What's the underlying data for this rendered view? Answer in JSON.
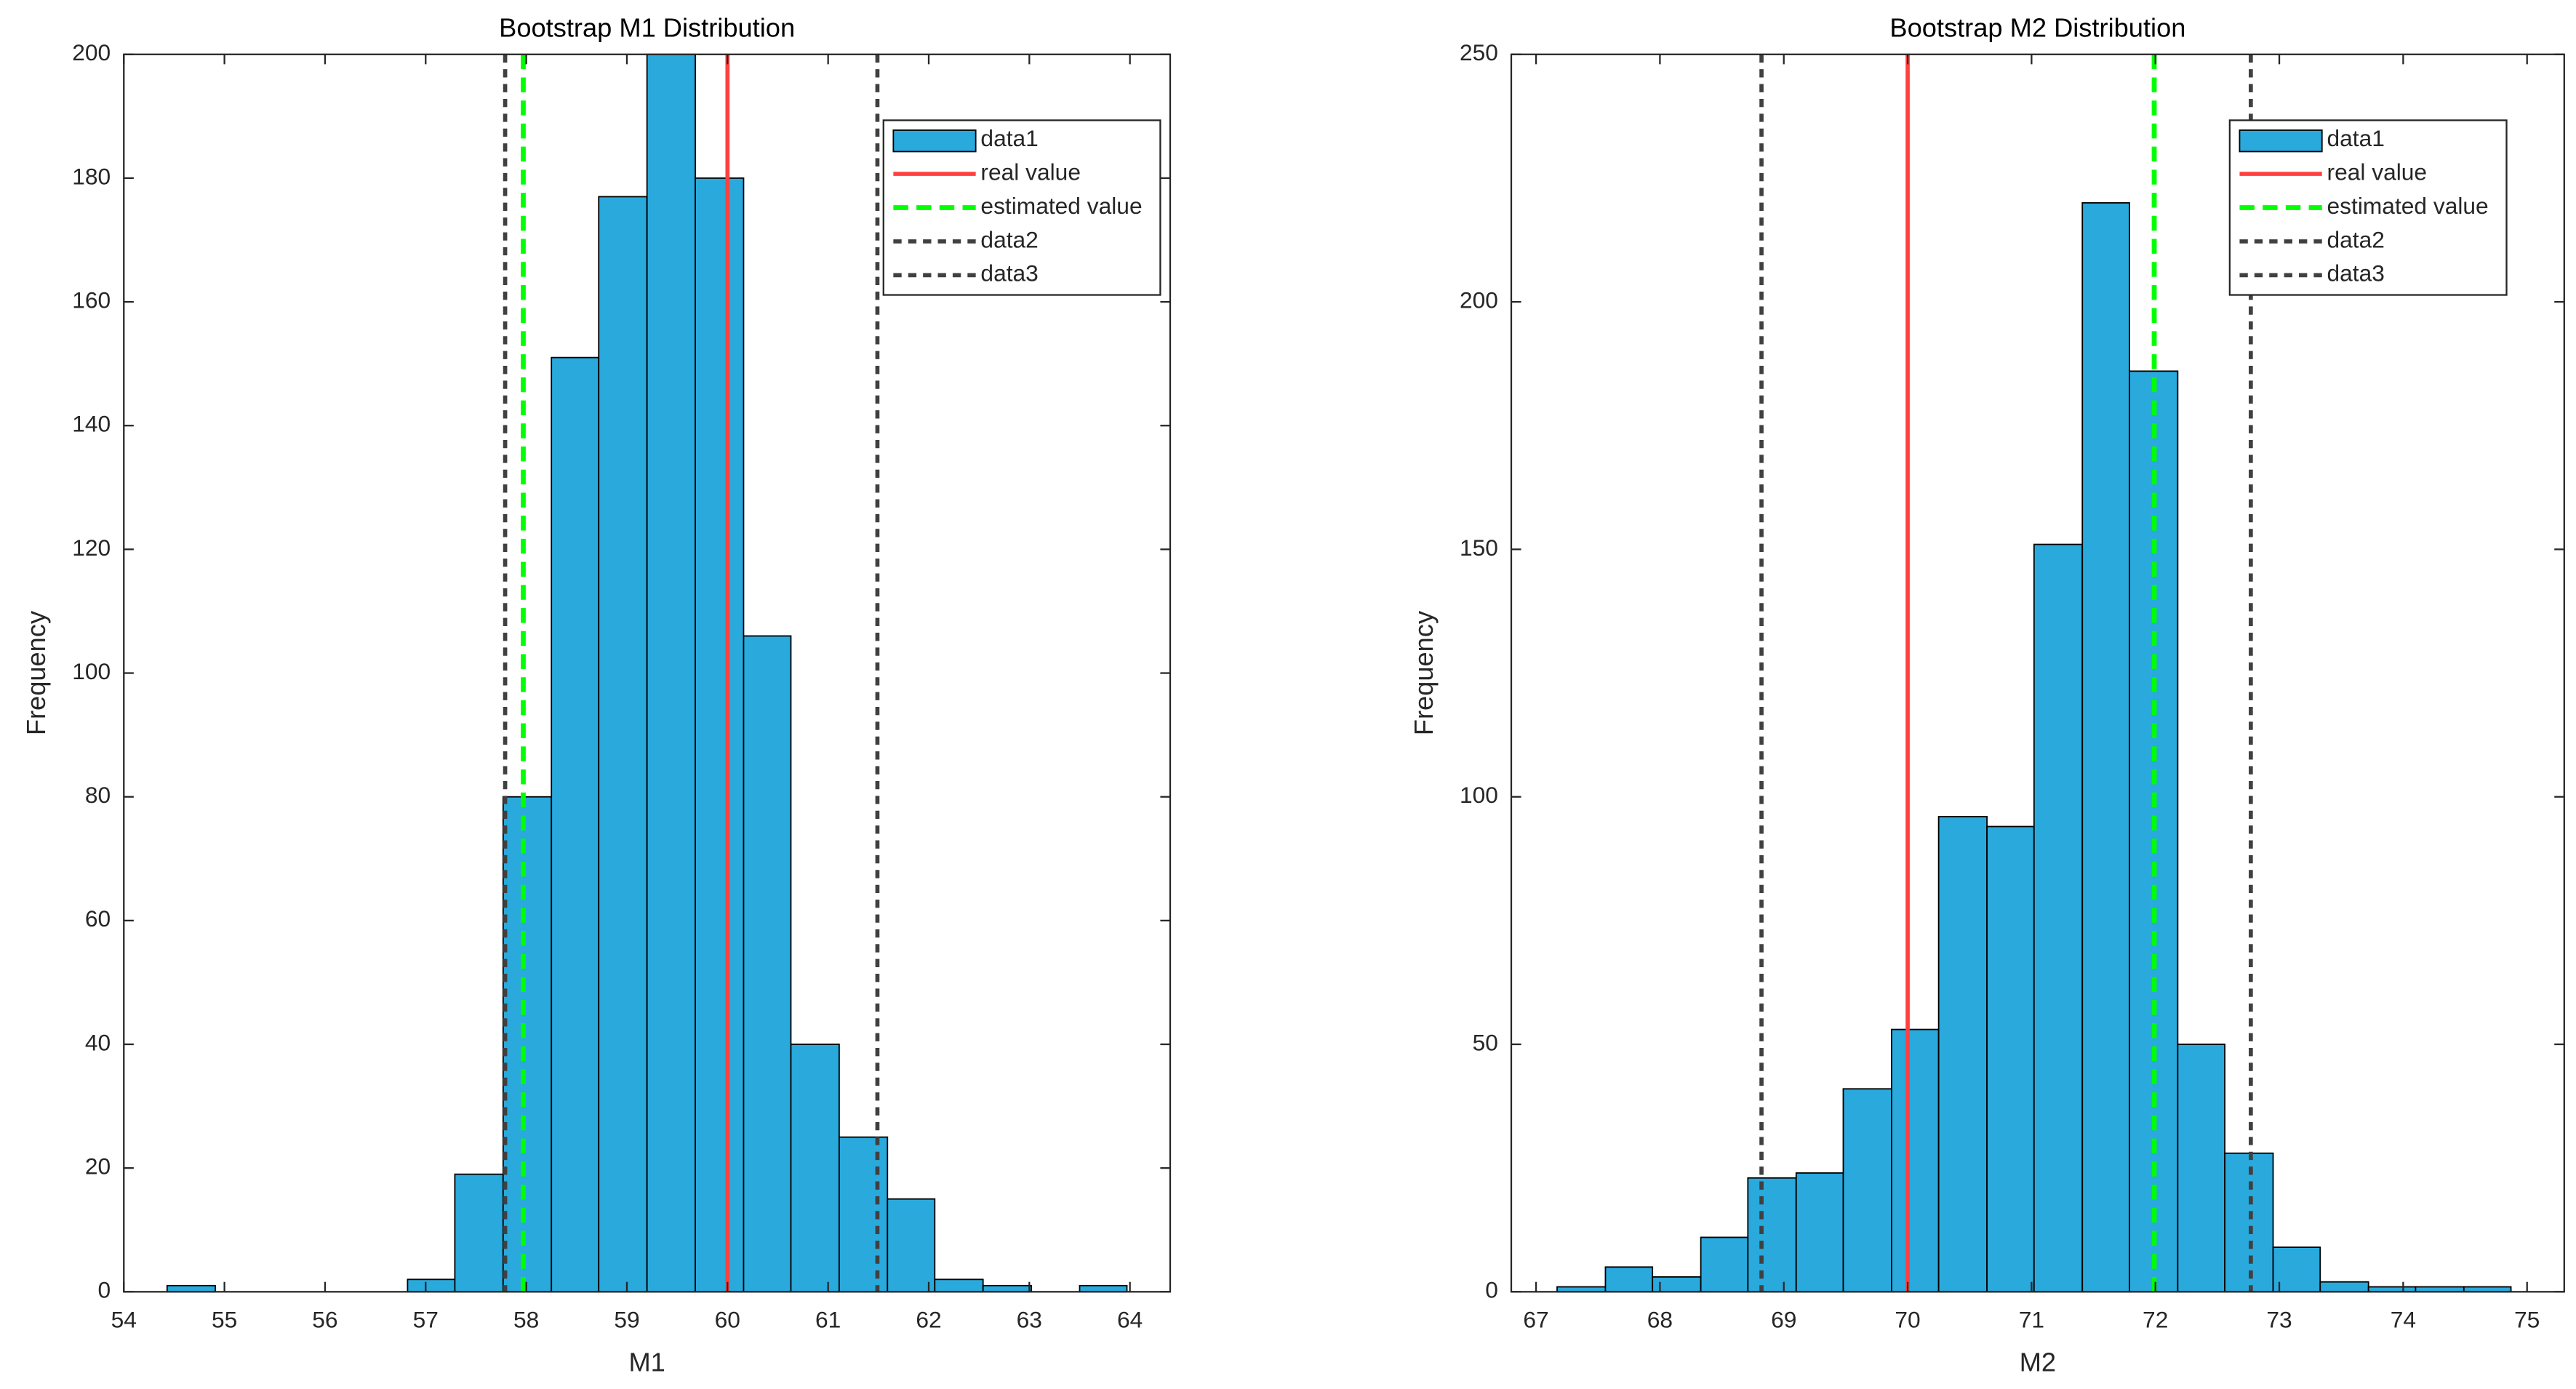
{
  "chart_data": [
    {
      "type": "histogram",
      "title": "Bootstrap M1 Distribution",
      "xlabel": "M1",
      "ylabel": "Frequency",
      "name": "data1",
      "color": "#2aa9dc",
      "bins": [
        54.43,
        54.91,
        55.38,
        55.86,
        56.34,
        56.82,
        57.29,
        57.77,
        58.25,
        58.72,
        59.2,
        59.68,
        60.16,
        60.63,
        61.11,
        61.59,
        62.06,
        62.54,
        63.02,
        63.5,
        63.97
      ],
      "counts": [
        1,
        0,
        0,
        0,
        0,
        2,
        19,
        80,
        151,
        177,
        200,
        180,
        106,
        40,
        25,
        15,
        2,
        1,
        0,
        1
      ],
      "xlim": [
        54,
        64.4
      ],
      "ylim": [
        0,
        200
      ],
      "xticks": [
        54,
        55,
        56,
        57,
        58,
        59,
        60,
        61,
        62,
        63,
        64
      ],
      "yticks": [
        0,
        20,
        40,
        60,
        80,
        100,
        120,
        140,
        160,
        180,
        200
      ],
      "vlines": [
        {
          "name": "real value",
          "x": 60,
          "color": "#ff4040",
          "style": "solid"
        },
        {
          "name": "estimated value",
          "x": 57.97,
          "color": "#00ff00",
          "style": "dashed"
        },
        {
          "name": "data2",
          "x": 57.79,
          "color": "#404040",
          "style": "dotted"
        },
        {
          "name": "data3",
          "x": 61.49,
          "color": "#404040",
          "style": "dotted"
        }
      ],
      "legend": "northeast"
    },
    {
      "type": "histogram",
      "title": "Bootstrap M2 Distribution",
      "xlabel": "M2",
      "ylabel": "Frequency",
      "name": "data1",
      "color": "#2aa9dc",
      "bins": [
        67.17,
        67.56,
        67.94,
        68.33,
        68.71,
        69.1,
        69.48,
        69.87,
        70.25,
        70.64,
        71.02,
        71.41,
        71.79,
        72.18,
        72.56,
        72.95,
        73.33,
        73.72,
        74.1,
        74.49,
        74.87
      ],
      "counts": [
        1,
        5,
        3,
        11,
        23,
        24,
        41,
        53,
        96,
        94,
        151,
        220,
        186,
        50,
        28,
        9,
        2,
        1,
        1,
        1
      ],
      "xlim": [
        66.8,
        75.3
      ],
      "ylim": [
        0,
        250
      ],
      "xticks": [
        67,
        68,
        69,
        70,
        71,
        72,
        73,
        74,
        75
      ],
      "yticks": [
        0,
        50,
        100,
        150,
        200,
        250
      ],
      "vlines": [
        {
          "name": "real value",
          "x": 70,
          "color": "#ff4040",
          "style": "solid"
        },
        {
          "name": "estimated value",
          "x": 71.99,
          "color": "#00ff00",
          "style": "dashed"
        },
        {
          "name": "data2",
          "x": 68.82,
          "color": "#404040",
          "style": "dotted"
        },
        {
          "name": "data3",
          "x": 72.77,
          "color": "#404040",
          "style": "dotted"
        }
      ],
      "legend": "northeast"
    }
  ]
}
